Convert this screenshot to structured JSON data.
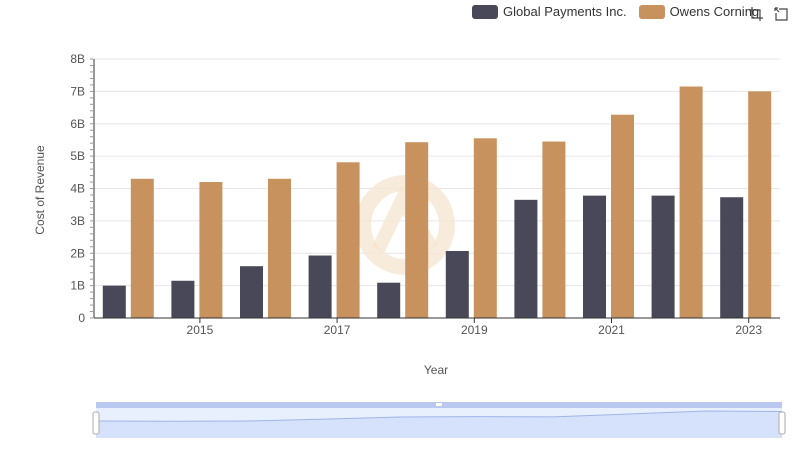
{
  "colors": {
    "series1": "#484858",
    "series2": "#c8925e",
    "grid": "#e6e6e6",
    "axis": "#333333",
    "slider_fill": "#d6e2fb",
    "slider_border": "#b8c8ef",
    "watermark": "#f5e6d3"
  },
  "legend": {
    "items": [
      "Global Payments Inc.",
      "Owens Corning"
    ]
  },
  "toolbar": {
    "icons": [
      "zoom-select-icon",
      "zoom-reset-icon"
    ]
  },
  "chart_data": {
    "type": "bar",
    "xlabel": "Year",
    "ylabel": "Cost of Revenue",
    "ylim": [
      0,
      8000000000
    ],
    "y_ticks": [
      "0",
      "1B",
      "2B",
      "3B",
      "4B",
      "5B",
      "6B",
      "7B",
      "8B"
    ],
    "x_ticks": [
      "2015",
      "2017",
      "2019",
      "2021",
      "2023"
    ],
    "categories": [
      "2014",
      "2015",
      "2016",
      "2017",
      "2018",
      "2019",
      "2020",
      "2021",
      "2022",
      "2023"
    ],
    "series": [
      {
        "name": "Global Payments Inc.",
        "values": [
          1000000000,
          1150000000,
          1600000000,
          1930000000,
          1090000000,
          2070000000,
          3650000000,
          3780000000,
          3780000000,
          3730000000
        ]
      },
      {
        "name": "Owens Corning",
        "values": [
          4300000000,
          4200000000,
          4300000000,
          4810000000,
          5430000000,
          5550000000,
          5450000000,
          6280000000,
          7150000000,
          7000000000
        ]
      }
    ],
    "grid": true,
    "legend_position": "top-right",
    "has_range_slider": true
  }
}
